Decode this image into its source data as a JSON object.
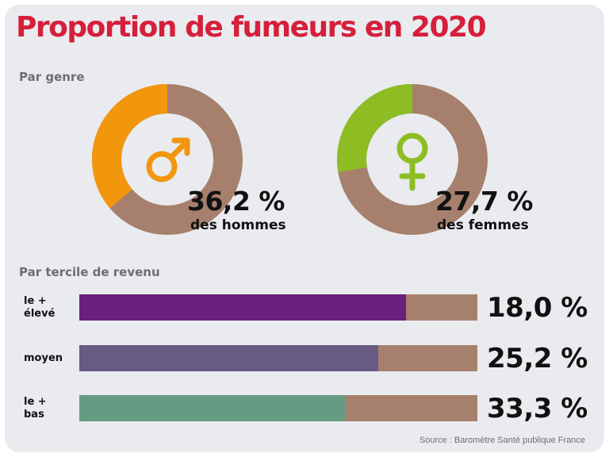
{
  "title": "Proportion de fumeurs en 2020",
  "source": "Source : Baromètre Santé publique France",
  "colors": {
    "title": "#d51f3b",
    "remainder": "#a6806d",
    "men": "#f2960d",
    "women": "#8dbd22",
    "income_high": "#6a1f7c",
    "income_mid": "#675a83",
    "income_low": "#659a83"
  },
  "chart_data": [
    {
      "type": "pie",
      "section_label": "Par genre",
      "slices": [
        {
          "category": "hommes",
          "value": 36.2,
          "value_label": "36,2 %",
          "caption": "des hommes",
          "symbol": "male-symbol-icon",
          "color": "#f2960d"
        },
        {
          "category": "femmes",
          "value": 27.7,
          "value_label": "27,7 %",
          "caption": "des femmes",
          "symbol": "female-symbol-icon",
          "color": "#8dbd22"
        }
      ]
    },
    {
      "type": "bar",
      "section_label": "Par tercile de revenu",
      "categories": [
        "le +\nélevé",
        "moyen",
        "le +\nbas"
      ],
      "values": [
        18.0,
        25.2,
        33.3
      ],
      "value_labels": [
        "18,0 %",
        "25,2 %",
        "33,3 %"
      ],
      "colors": [
        "#6a1f7c",
        "#675a83",
        "#659a83"
      ],
      "bar_fill_fraction": [
        0.82,
        0.75,
        0.67
      ]
    }
  ]
}
